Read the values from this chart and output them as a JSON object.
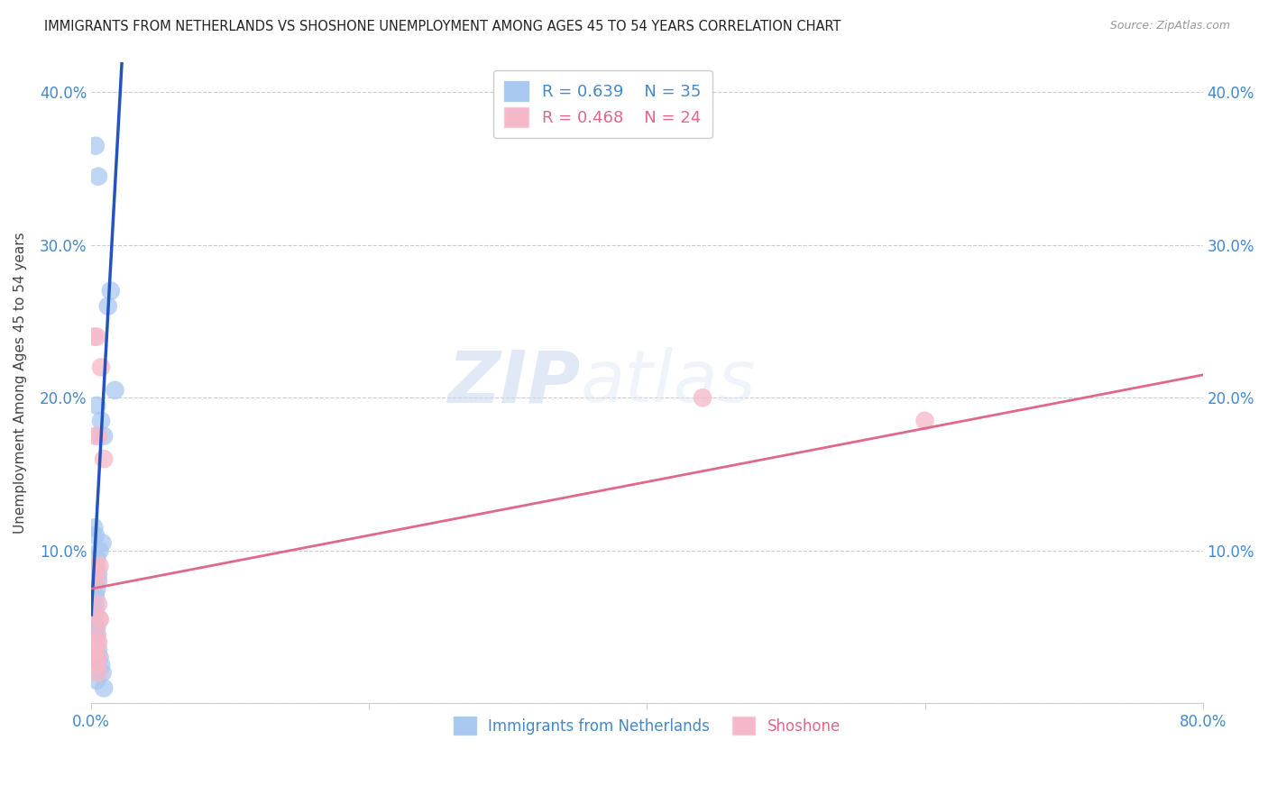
{
  "title": "IMMIGRANTS FROM NETHERLANDS VS SHOSHONE UNEMPLOYMENT AMONG AGES 45 TO 54 YEARS CORRELATION CHART",
  "source": "Source: ZipAtlas.com",
  "ylabel": "Unemployment Among Ages 45 to 54 years",
  "xlim": [
    0.0,
    0.8
  ],
  "ylim": [
    0.0,
    0.42
  ],
  "blue_R": "R = 0.639",
  "blue_N": "N = 35",
  "pink_R": "R = 0.468",
  "pink_N": "N = 24",
  "blue_color": "#a8c8f0",
  "pink_color": "#f5b8c8",
  "blue_line_color": "#2255bb",
  "pink_line_color": "#e06888",
  "watermark_zip": "ZIP",
  "watermark_atlas": "atlas",
  "blue_scatter_x": [
    0.003,
    0.005,
    0.012,
    0.017,
    0.004,
    0.007,
    0.009,
    0.014,
    0.002,
    0.003,
    0.004,
    0.003,
    0.006,
    0.008,
    0.003,
    0.002,
    0.002,
    0.003,
    0.004,
    0.005,
    0.006,
    0.007,
    0.008,
    0.009,
    0.004,
    0.005,
    0.003,
    0.004,
    0.002,
    0.003,
    0.005,
    0.004,
    0.003,
    0.002,
    0.004
  ],
  "blue_scatter_y": [
    0.365,
    0.345,
    0.26,
    0.205,
    0.195,
    0.185,
    0.175,
    0.27,
    0.115,
    0.11,
    0.095,
    0.09,
    0.1,
    0.105,
    0.065,
    0.06,
    0.055,
    0.05,
    0.045,
    0.035,
    0.03,
    0.025,
    0.02,
    0.01,
    0.075,
    0.08,
    0.04,
    0.015,
    0.055,
    0.07,
    0.085,
    0.05,
    0.06,
    0.045,
    0.03
  ],
  "pink_scatter_x": [
    0.002,
    0.004,
    0.007,
    0.009,
    0.003,
    0.005,
    0.004,
    0.006,
    0.003,
    0.004,
    0.005,
    0.006,
    0.004,
    0.005,
    0.003,
    0.002,
    0.004,
    0.005,
    0.44,
    0.6,
    0.006,
    0.004,
    0.003,
    0.005
  ],
  "pink_scatter_y": [
    0.24,
    0.24,
    0.22,
    0.16,
    0.175,
    0.175,
    0.09,
    0.09,
    0.085,
    0.08,
    0.065,
    0.055,
    0.045,
    0.04,
    0.035,
    0.03,
    0.025,
    0.02,
    0.2,
    0.185,
    0.055,
    0.04,
    0.035,
    0.03
  ],
  "blue_line_x": [
    0.0,
    0.022
  ],
  "blue_line_y": [
    0.058,
    0.42
  ],
  "pink_line_x": [
    0.0,
    0.8
  ],
  "pink_line_y": [
    0.075,
    0.215
  ]
}
